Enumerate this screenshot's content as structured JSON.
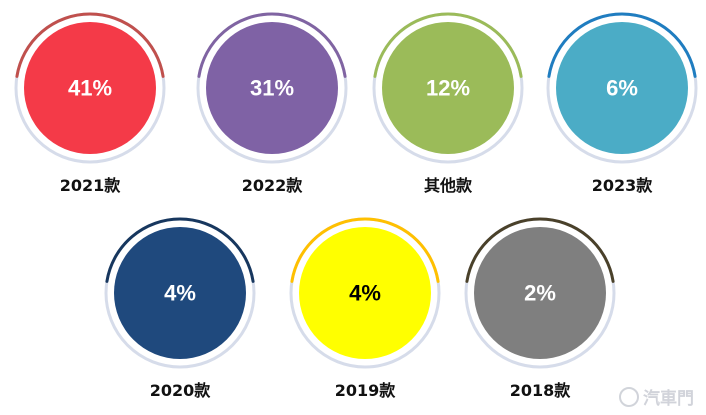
{
  "chart_data": {
    "type": "pie",
    "categories": [
      "2021款",
      "2022款",
      "其他款",
      "2023款",
      "2020款",
      "2019款",
      "2018款"
    ],
    "values": [
      41,
      31,
      12,
      6,
      4,
      4,
      2
    ],
    "value_labels": [
      "41%",
      "31%",
      "12%",
      "6%",
      "4%",
      "4%",
      "2%"
    ],
    "colors": [
      "#f43a48",
      "#7f62a5",
      "#9bbb59",
      "#4bacc6",
      "#1f497d",
      "#ffff00",
      "#7f7f7f"
    ],
    "arc_colors": [
      "#c0504d",
      "#8064a2",
      "#9bbb59",
      "#1f7dc0",
      "#17375e",
      "#ffc000",
      "#4a412a"
    ],
    "label_colors": [
      "#ffffff",
      "#ffffff",
      "#ffffff",
      "#ffffff",
      "#ffffff",
      "#000000",
      "#ffffff"
    ],
    "layout": "two rows of circle badges, 4 on top and 3 below"
  },
  "watermark": {
    "text": "汽車門"
  }
}
